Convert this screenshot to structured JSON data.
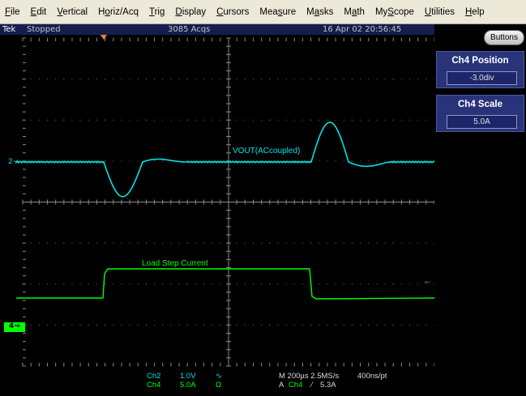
{
  "menu": {
    "items": [
      {
        "label": "File",
        "hot": "F",
        "rest": "ile"
      },
      {
        "label": "Edit",
        "hot": "E",
        "rest": "dit"
      },
      {
        "label": "Vertical",
        "hot": "V",
        "rest": "ertical"
      },
      {
        "label": "Horiz/Acq",
        "pre": "H",
        "hot": "o",
        "rest": "riz/Acq"
      },
      {
        "label": "Trig",
        "hot": "T",
        "rest": "rig"
      },
      {
        "label": "Display",
        "hot": "D",
        "rest": "isplay"
      },
      {
        "label": "Cursors",
        "hot": "C",
        "rest": "ursors"
      },
      {
        "label": "Measure",
        "pre": "Mea",
        "hot": "s",
        "rest": "ure"
      },
      {
        "label": "Masks",
        "pre": "M",
        "hot": "a",
        "rest": "sks"
      },
      {
        "label": "Math",
        "pre": "M",
        "hot": "a",
        "rest": "th"
      },
      {
        "label": "MyScope",
        "pre": "My",
        "hot": "S",
        "rest": "cope"
      },
      {
        "label": "Utilities",
        "hot": "U",
        "rest": "tilities"
      },
      {
        "label": "Help",
        "hot": "H",
        "rest": "elp"
      }
    ]
  },
  "status": {
    "brand": "Tek",
    "state": "Stopped",
    "acqs": "3085 Acqs",
    "datetime": "16 Apr 02 20:56:45"
  },
  "waveform": {
    "ch2_marker": "2",
    "ch4_marker": "4",
    "vout_label": "VOUT(ACcoupled)",
    "load_label": "Load Step Current",
    "trigger_level_arrow": "←",
    "colors": {
      "ch2": "#00e5e5",
      "ch4": "#00ff00",
      "grid": "#6e6e6e",
      "trigger": "#ff7f27"
    }
  },
  "readout": {
    "ch2": {
      "name": "Ch2",
      "scale": "1.0V",
      "coupling": "∿"
    },
    "ch4": {
      "name": "Ch4",
      "scale": "5.0A",
      "coupling": "Ω"
    },
    "horizontal": "M 200µs 2.5MS/s",
    "record": "400ns/pt",
    "trigger_prefix": "A",
    "trigger_source": "Ch4",
    "trigger_slope": "⁄",
    "trigger_level": "5.3A"
  },
  "panel": {
    "buttons_label": "Buttons",
    "controls": [
      {
        "title": "Ch4 Position",
        "value": "-3.0div"
      },
      {
        "title": "Ch4 Scale",
        "value": "5.0A"
      }
    ]
  }
}
